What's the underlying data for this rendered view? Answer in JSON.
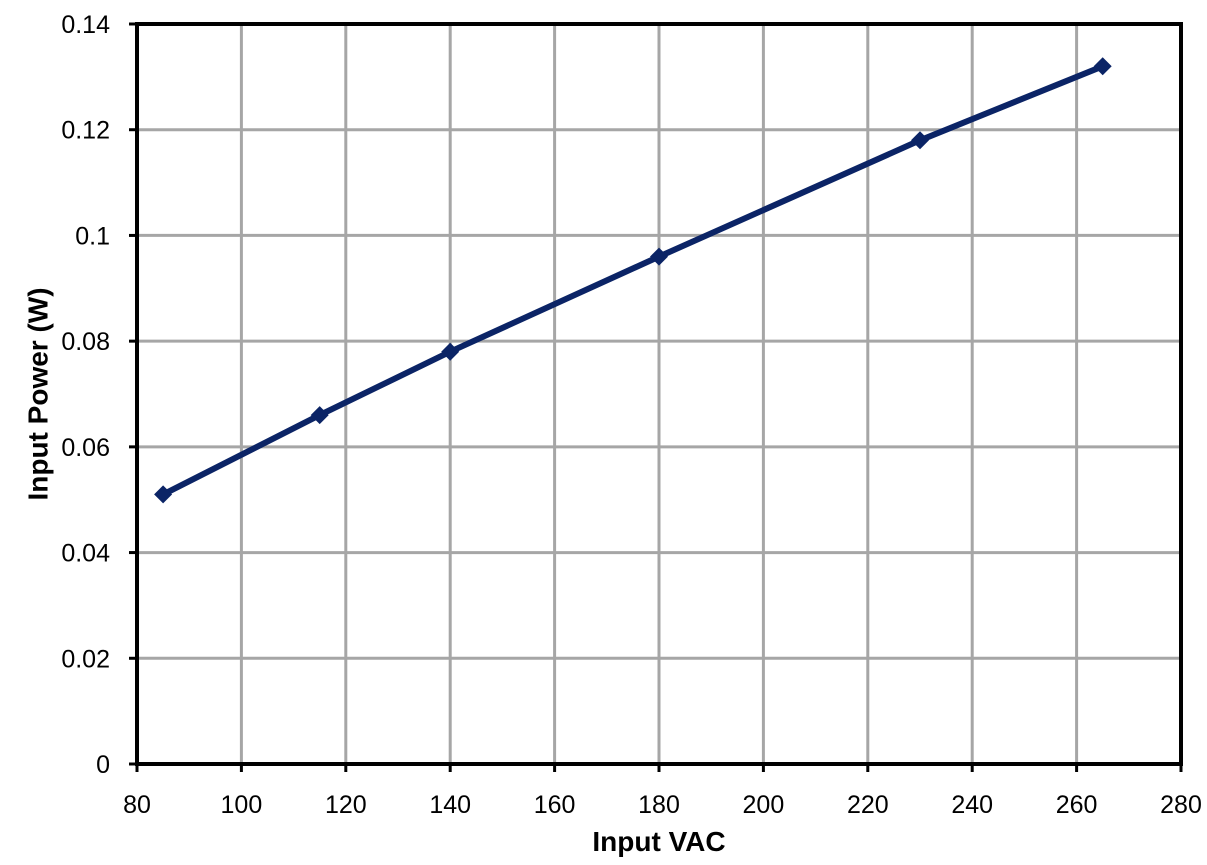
{
  "chart_data": {
    "type": "line",
    "title": "",
    "xlabel": "Input VAC",
    "ylabel": "Input Power (W)",
    "xlim": [
      80,
      280
    ],
    "ylim": [
      0,
      0.14
    ],
    "x_ticks": [
      "80",
      "100",
      "120",
      "140",
      "160",
      "180",
      "200",
      "220",
      "240",
      "260",
      "280"
    ],
    "y_ticks": [
      "0",
      "0.02",
      "0.04",
      "0.06",
      "0.08",
      "0.1",
      "0.12",
      "0.14"
    ],
    "grid": true,
    "legend": "none",
    "series": [
      {
        "x": [
          85,
          115,
          140,
          180,
          230,
          265
        ],
        "y": [
          0.051,
          0.066,
          0.078,
          0.096,
          0.118,
          0.132
        ],
        "color": "#0b2466",
        "marker": "diamond"
      }
    ],
    "colors": {
      "grid": "#a6a6a6",
      "frame": "#000000",
      "series": "#0b2466"
    }
  }
}
